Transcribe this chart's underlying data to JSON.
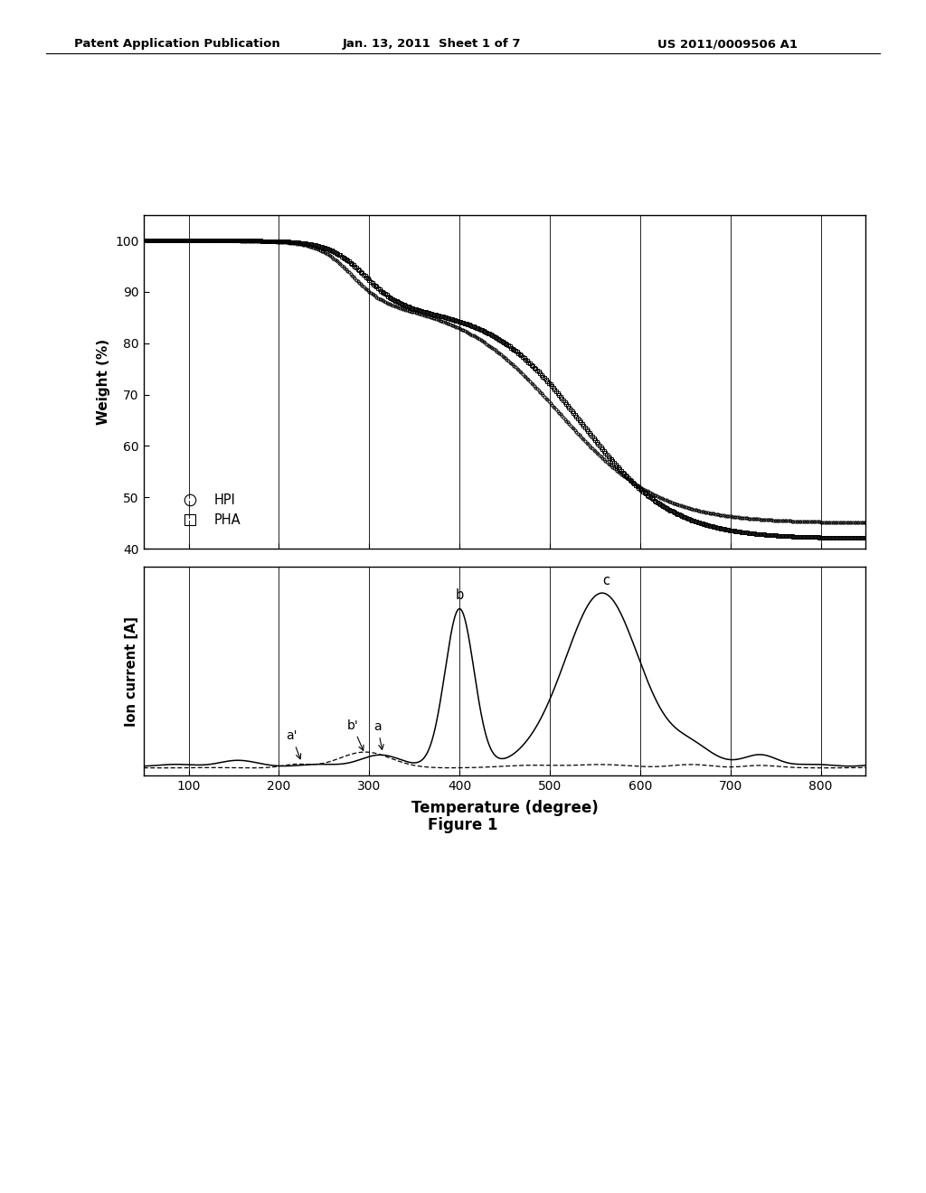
{
  "header_left": "Patent Application Publication",
  "header_mid": "Jan. 13, 2011  Sheet 1 of 7",
  "header_right": "US 2011/0009506 A1",
  "figure_label": "Figure 1",
  "top_plot": {
    "ylabel": "Weight (%)",
    "ylim": [
      40,
      105
    ],
    "yticks": [
      40,
      50,
      60,
      70,
      80,
      90,
      100
    ],
    "xlim": [
      50,
      850
    ],
    "xticks": [
      100,
      200,
      300,
      400,
      500,
      600,
      700,
      800
    ],
    "legend_HPI": "HPI",
    "legend_PHA": "PHA"
  },
  "bottom_plot": {
    "ylabel": "Ion current [A]",
    "xlim": [
      50,
      850
    ],
    "xticks": [
      100,
      200,
      300,
      400,
      500,
      600,
      700,
      800
    ],
    "xlabel": "Temperature (degree)"
  },
  "background_color": "#ffffff"
}
